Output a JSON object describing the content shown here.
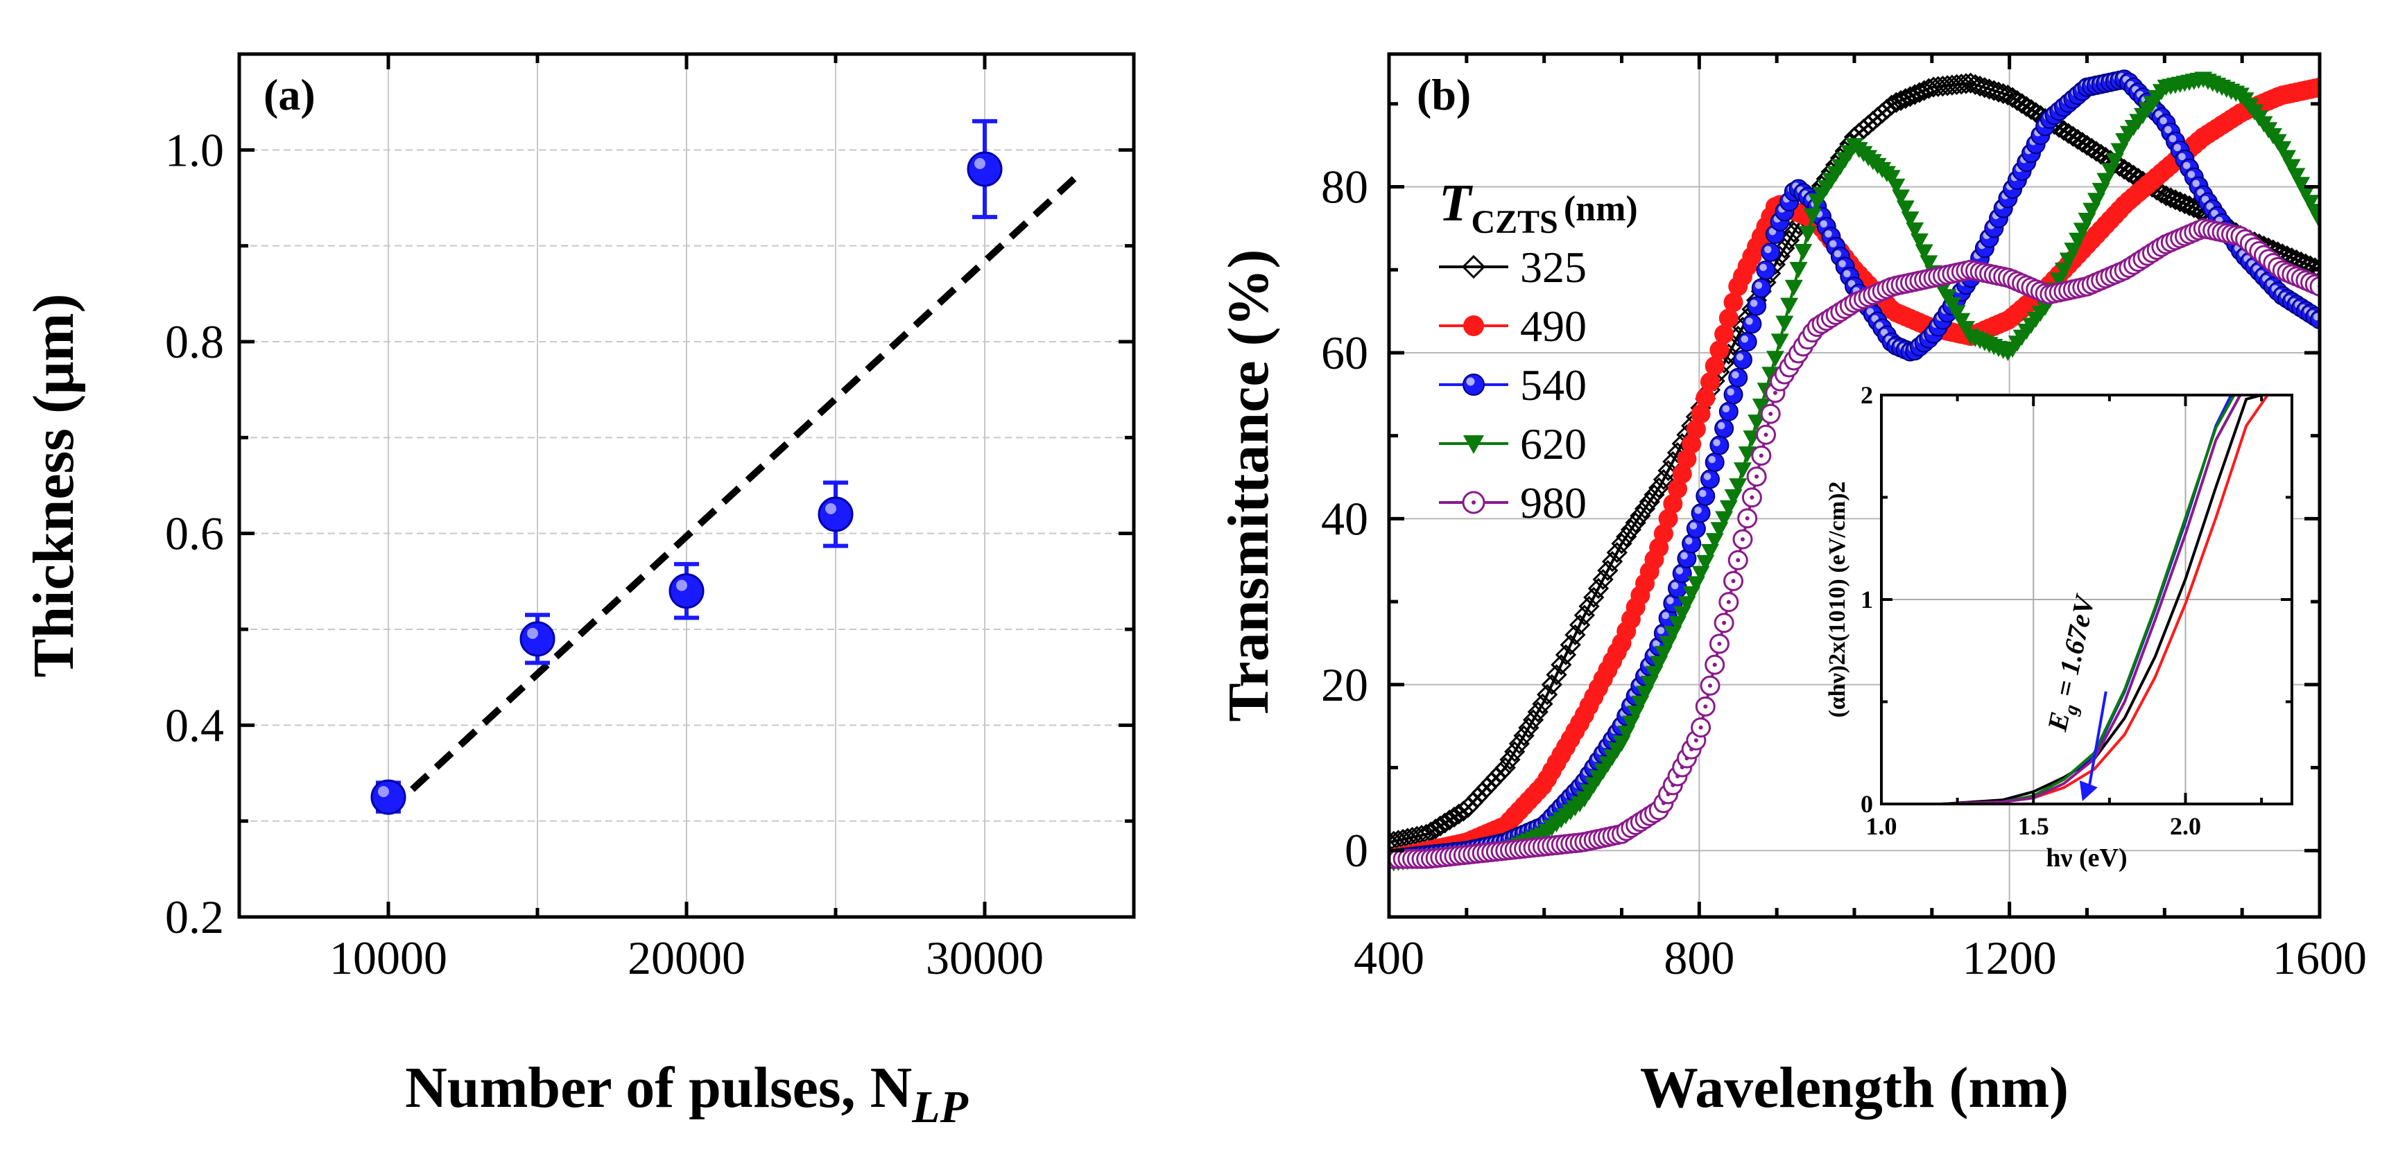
{
  "chart_data": [
    {
      "id": "a",
      "type": "scatter",
      "panel_label": "(a)",
      "xlabel": "Number of pulses, N",
      "xlabel_sub": "LP",
      "ylabel": "Thickness (μm)",
      "xlim": [
        5000,
        35000
      ],
      "ylim": [
        0.2,
        1.1
      ],
      "xticks": [
        10000,
        15000,
        20000,
        25000,
        30000
      ],
      "xtick_labels": [
        "10000",
        "20000",
        "30000"
      ],
      "xtick_label_values": [
        10000,
        20000,
        30000
      ],
      "yticks": [
        0.2,
        0.3,
        0.4,
        0.5,
        0.6,
        0.7,
        0.8,
        0.9,
        1.0,
        1.1
      ],
      "ytick_labels": [
        "0.2",
        "0.4",
        "0.6",
        "0.8",
        "1.0"
      ],
      "ytick_label_values": [
        0.2,
        0.4,
        0.6,
        0.8,
        1.0
      ],
      "grid": true,
      "points": [
        {
          "x": 10000,
          "y": 0.325,
          "err": 0.015
        },
        {
          "x": 15000,
          "y": 0.49,
          "err": 0.025
        },
        {
          "x": 20000,
          "y": 0.54,
          "err": 0.028
        },
        {
          "x": 25000,
          "y": 0.62,
          "err": 0.033
        },
        {
          "x": 30000,
          "y": 0.98,
          "err": 0.05
        }
      ],
      "fit_line": {
        "x": [
          10000,
          33000
        ],
        "y": [
          0.31,
          0.97
        ],
        "style": "dashed"
      },
      "marker_color": "#1a1aff"
    },
    {
      "id": "b",
      "type": "line",
      "panel_label": "(b)",
      "xlabel": "Wavelength (nm)",
      "ylabel": "Transmittance (%)",
      "xlim": [
        400,
        1600
      ],
      "ylim": [
        -8,
        96
      ],
      "xticks": [
        400,
        500,
        600,
        700,
        800,
        900,
        1000,
        1100,
        1200,
        1300,
        1400,
        1500,
        1600
      ],
      "xtick_labels": [
        "400",
        "800",
        "1200",
        "1600"
      ],
      "xtick_label_values": [
        400,
        800,
        1200,
        1600
      ],
      "yticks": [
        0,
        10,
        20,
        30,
        40,
        50,
        60,
        70,
        80,
        90
      ],
      "ytick_labels": [
        "0",
        "20",
        "40",
        "60",
        "80"
      ],
      "ytick_label_values": [
        0,
        20,
        40,
        60,
        80
      ],
      "grid": true,
      "legend_title": "T",
      "legend_title_sub": "CZTS",
      "legend_title_unit": "(nm)",
      "legend_position": "upper-left",
      "series": [
        {
          "name": "325",
          "color": "#000000",
          "marker": "diamond-open",
          "x": [
            400,
            450,
            500,
            550,
            600,
            650,
            700,
            750,
            800,
            850,
            900,
            950,
            1000,
            1050,
            1100,
            1150,
            1200,
            1250,
            1300,
            1350,
            1400,
            1450,
            1500,
            1550,
            1600
          ],
          "y": [
            1,
            2,
            5,
            10,
            18,
            28,
            37,
            44,
            53,
            62,
            71,
            79,
            86,
            90,
            92,
            92.5,
            91,
            88,
            85,
            82,
            79,
            77,
            74,
            72,
            70
          ]
        },
        {
          "name": "490",
          "color": "#ff1a1a",
          "marker": "circle-filled",
          "x": [
            400,
            450,
            500,
            550,
            600,
            650,
            700,
            750,
            800,
            850,
            900,
            950,
            1000,
            1050,
            1100,
            1150,
            1200,
            1250,
            1300,
            1350,
            1400,
            1450,
            1500,
            1550,
            1600
          ],
          "y": [
            -1,
            0,
            1,
            3,
            8,
            16,
            25,
            37,
            52,
            68,
            78,
            76,
            70,
            65,
            63,
            62,
            64,
            68,
            73,
            78,
            82,
            86,
            89,
            91,
            92
          ]
        },
        {
          "name": "540",
          "color": "#1a1aff",
          "marker": "circle-half",
          "x": [
            400,
            450,
            500,
            550,
            600,
            650,
            700,
            750,
            800,
            850,
            900,
            925,
            950,
            1000,
            1050,
            1075,
            1100,
            1150,
            1200,
            1250,
            1300,
            1350,
            1400,
            1450,
            1500,
            1550,
            1600
          ],
          "y": [
            -1,
            -0.5,
            0,
            1,
            3,
            8,
            15,
            25,
            40,
            57,
            75,
            80,
            78,
            68,
            61,
            60,
            62,
            69,
            79,
            88,
            92,
            93,
            88,
            79,
            72,
            67,
            64
          ]
        },
        {
          "name": "620",
          "color": "#0a7a0a",
          "marker": "triangle-down",
          "x": [
            400,
            450,
            500,
            550,
            600,
            650,
            700,
            750,
            800,
            850,
            900,
            950,
            1000,
            1050,
            1100,
            1150,
            1200,
            1250,
            1300,
            1350,
            1400,
            1450,
            1500,
            1550,
            1600
          ],
          "y": [
            -1.5,
            -1,
            -0.5,
            0,
            2,
            6,
            13,
            23,
            33,
            44,
            60,
            78,
            85,
            81,
            70,
            62,
            60,
            66,
            76,
            86,
            92,
            93,
            91,
            85,
            76
          ]
        },
        {
          "name": "980",
          "color": "#8b1a8b",
          "marker": "circle-dot",
          "x": [
            400,
            450,
            500,
            550,
            600,
            650,
            700,
            750,
            800,
            850,
            900,
            950,
            1000,
            1050,
            1100,
            1150,
            1200,
            1250,
            1300,
            1350,
            1400,
            1450,
            1500,
            1550,
            1600
          ],
          "y": [
            -1,
            -1,
            -0.5,
            0,
            0.5,
            1,
            2,
            5,
            14,
            35,
            56,
            63,
            66,
            68,
            69,
            70,
            69,
            67,
            68,
            70,
            73,
            75,
            74,
            70,
            68
          ]
        }
      ],
      "inset": {
        "type": "line",
        "xlabel": "hν (eV)",
        "ylabel": "(αhν)2x(1010) (eV/cm)2",
        "xlim": [
          1.0,
          2.35
        ],
        "ylim": [
          0,
          2
        ],
        "xtick_labels": [
          "1.0",
          "1.5",
          "2.0"
        ],
        "xtick_label_values": [
          1.0,
          1.5,
          2.0
        ],
        "ytick_labels": [
          "0",
          "1",
          "2"
        ],
        "ytick_label_values": [
          0,
          1,
          2
        ],
        "annotation": "E",
        "annotation_sub": "g",
        "annotation_value": " = 1.67eV",
        "annotation_color": "#1a1aff",
        "series": [
          {
            "name": "325",
            "color": "#000000",
            "x": [
              1.0,
              1.2,
              1.4,
              1.5,
              1.6,
              1.7,
              1.8,
              1.9,
              2.0,
              2.1,
              2.2,
              2.25
            ],
            "y": [
              0,
              0,
              0.02,
              0.06,
              0.13,
              0.22,
              0.42,
              0.72,
              1.1,
              1.55,
              1.98,
              2.0
            ]
          },
          {
            "name": "490",
            "color": "#ff1a1a",
            "x": [
              1.0,
              1.2,
              1.4,
              1.5,
              1.6,
              1.7,
              1.8,
              1.9,
              2.0,
              2.1,
              2.2,
              2.27
            ],
            "y": [
              0,
              0,
              0.01,
              0.03,
              0.08,
              0.17,
              0.34,
              0.62,
              0.98,
              1.4,
              1.85,
              2.0
            ]
          },
          {
            "name": "540",
            "color": "#1a1aff",
            "x": [
              1.0,
              1.2,
              1.4,
              1.5,
              1.6,
              1.7,
              1.8,
              1.9,
              2.0,
              2.1,
              2.15
            ],
            "y": [
              0,
              0,
              0.01,
              0.04,
              0.12,
              0.24,
              0.55,
              0.95,
              1.38,
              1.85,
              2.0
            ]
          },
          {
            "name": "620",
            "color": "#0a7a0a",
            "x": [
              1.0,
              1.2,
              1.4,
              1.5,
              1.6,
              1.7,
              1.8,
              1.9,
              2.0,
              2.1,
              2.16
            ],
            "y": [
              0,
              0,
              0.01,
              0.04,
              0.12,
              0.25,
              0.56,
              0.96,
              1.4,
              1.84,
              2.0
            ]
          },
          {
            "name": "980",
            "color": "#8b1a8b",
            "x": [
              1.0,
              1.2,
              1.4,
              1.5,
              1.6,
              1.7,
              1.8,
              1.9,
              2.0,
              2.1,
              2.18
            ],
            "y": [
              0,
              0,
              0.01,
              0.03,
              0.1,
              0.22,
              0.5,
              0.9,
              1.32,
              1.78,
              2.0
            ]
          }
        ]
      }
    }
  ]
}
